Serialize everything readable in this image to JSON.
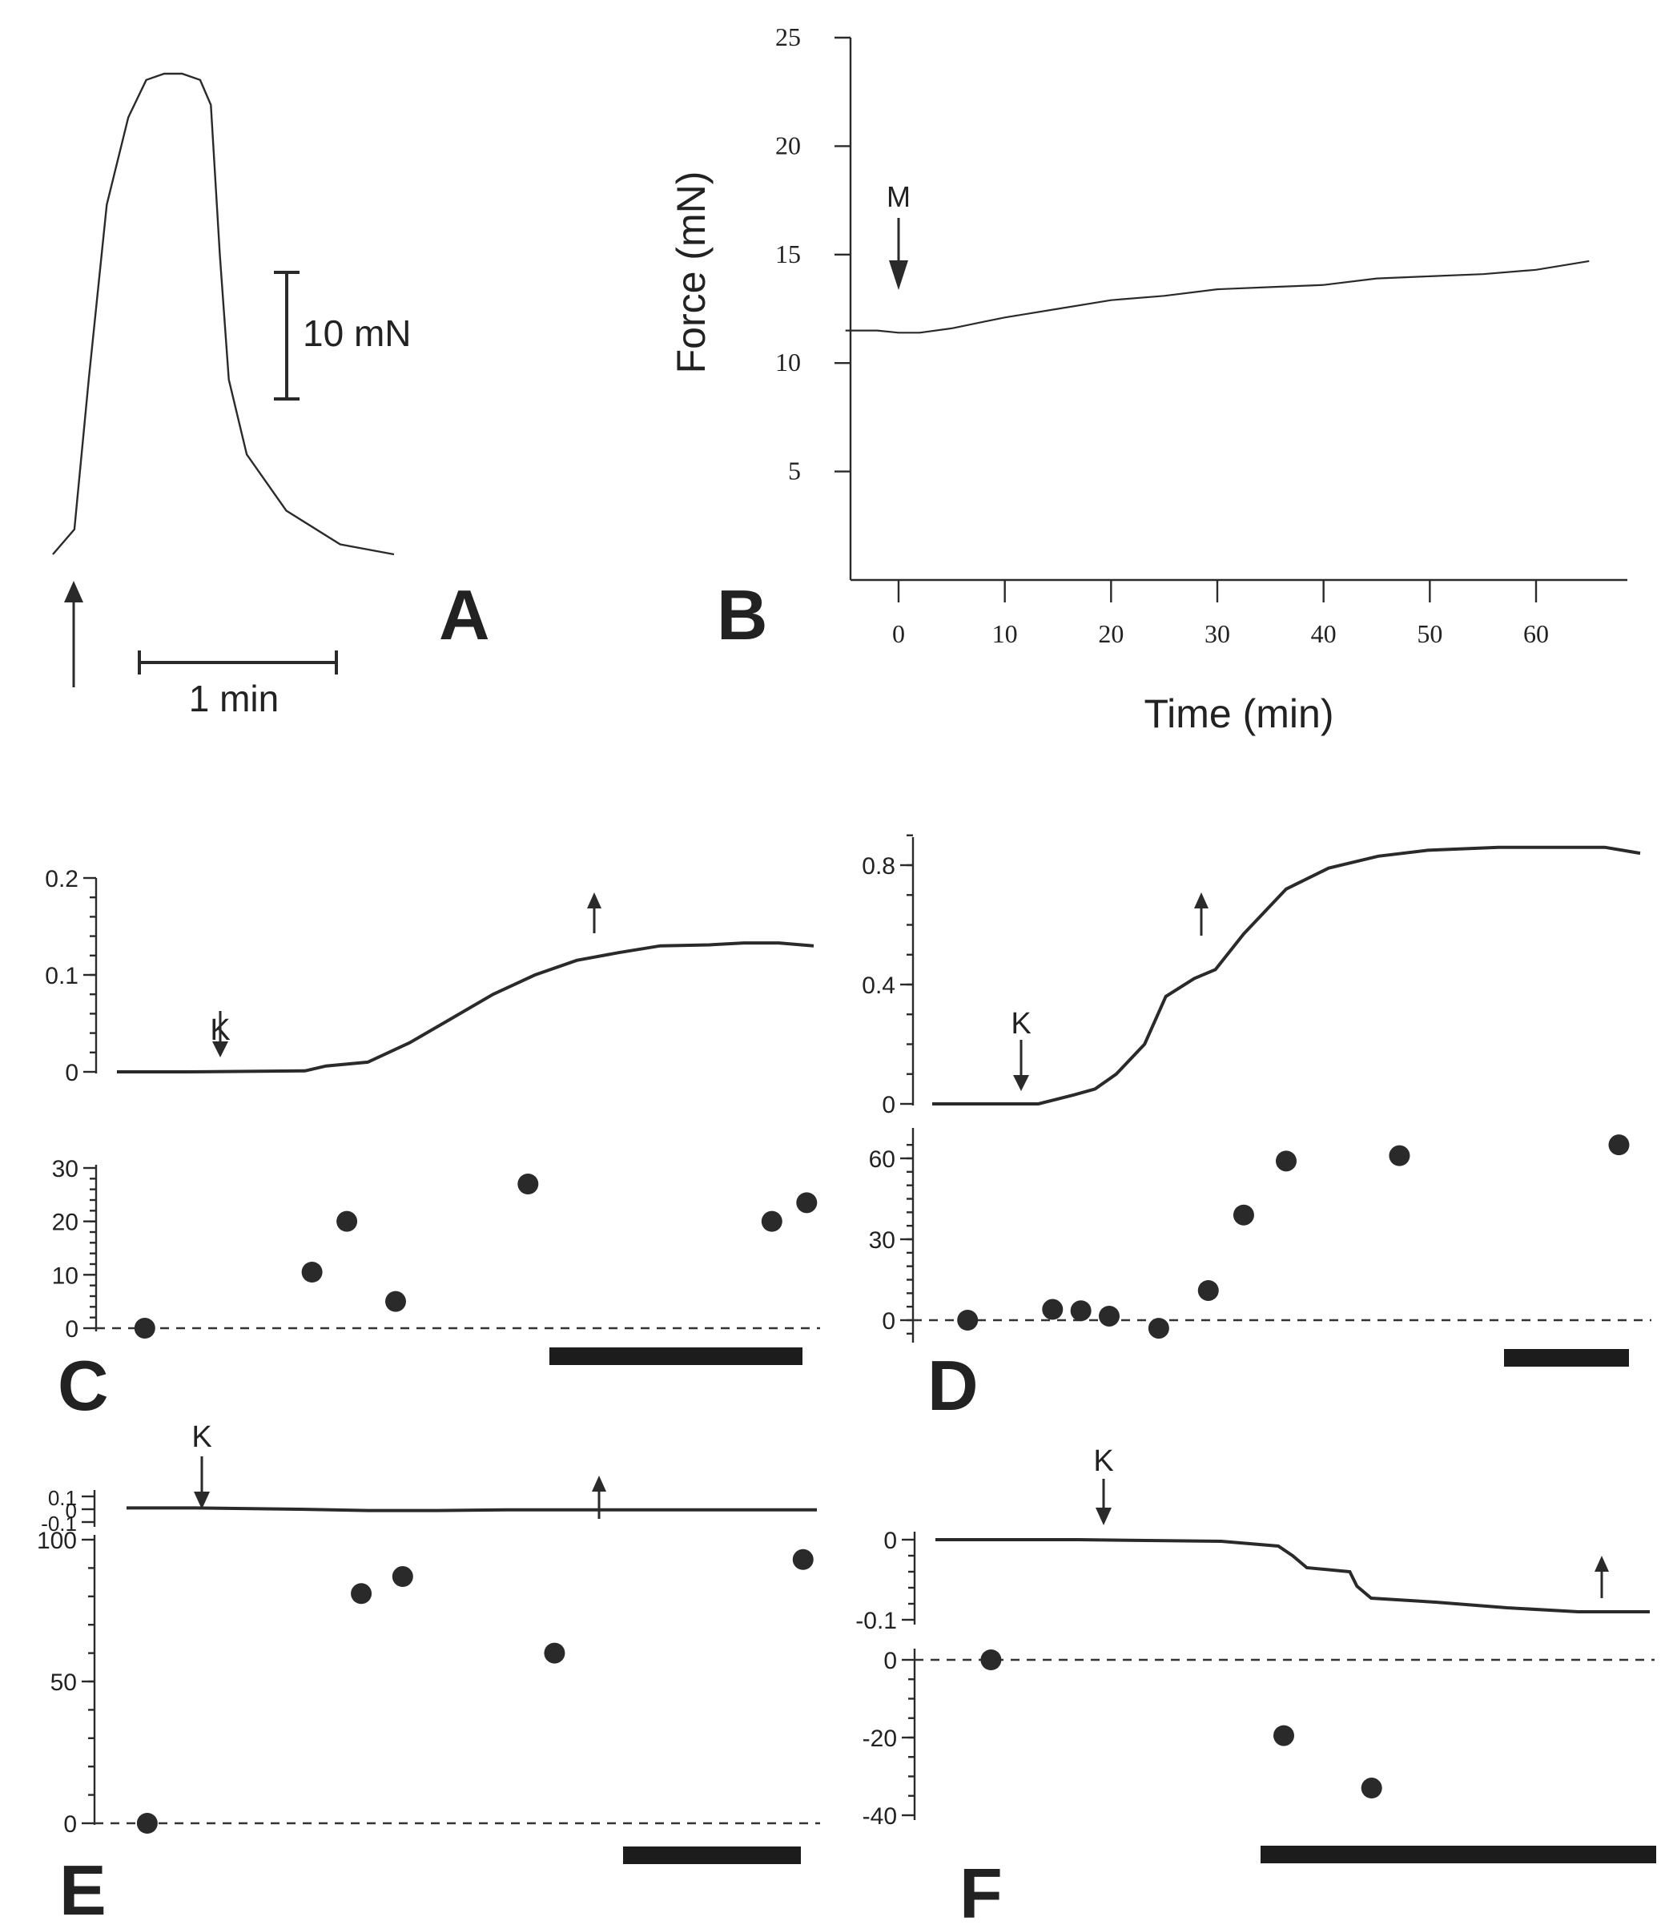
{
  "chart_data": [
    {
      "panel": "A",
      "type": "line",
      "series": [
        {
          "name": "force trace",
          "t_min": [
            0,
            0.12,
            0.2,
            0.3,
            0.42,
            0.52,
            0.62,
            0.72,
            0.82,
            0.88,
            0.93,
            0.98,
            1.08,
            1.3,
            1.6,
            1.9
          ],
          "force_mN": [
            0,
            2,
            14,
            28,
            35,
            38,
            38.5,
            38.5,
            38,
            36,
            24,
            14,
            8,
            3.5,
            0.8,
            0
          ]
        }
      ],
      "scale_bars": {
        "force": "10 mN",
        "time": "1 min"
      }
    },
    {
      "panel": "B",
      "type": "line",
      "xlabel": "Time (min)",
      "ylabel": "Force (mN)",
      "xlim": [
        -5,
        67
      ],
      "ylim": [
        0,
        25
      ],
      "xticks": [
        "0",
        "10",
        "20",
        "30",
        "40",
        "50",
        "60"
      ],
      "yticks": [
        "5",
        "10",
        "15",
        "20",
        "25"
      ],
      "annotations": [
        "M"
      ],
      "series": [
        {
          "name": "force",
          "x": [
            -5,
            -2,
            0,
            2,
            5,
            8,
            10,
            15,
            20,
            25,
            30,
            35,
            40,
            45,
            50,
            55,
            60,
            65
          ],
          "y": [
            11.5,
            11.5,
            11.4,
            11.4,
            11.6,
            11.9,
            12.1,
            12.5,
            12.9,
            13.1,
            13.4,
            13.5,
            13.6,
            13.9,
            14.0,
            14.1,
            14.3,
            14.7
          ]
        }
      ]
    },
    {
      "panel": "C",
      "type": "line+scatter",
      "top": {
        "yticks": [
          "0",
          "0.1",
          "0.2"
        ],
        "ylim": [
          0,
          0.2
        ],
        "annotations": [
          "K"
        ],
        "x": [
          0,
          0.1,
          0.27,
          0.3,
          0.36,
          0.42,
          0.48,
          0.54,
          0.6,
          0.66,
          0.72,
          0.78,
          0.85,
          0.9,
          0.95,
          1.0
        ],
        "y": [
          0,
          0,
          0.001,
          0.006,
          0.01,
          0.03,
          0.055,
          0.08,
          0.1,
          0.115,
          0.123,
          0.13,
          0.131,
          0.133,
          0.133,
          0.13
        ]
      },
      "bottom": {
        "yticks": [
          "0",
          "10",
          "20",
          "30"
        ],
        "ylim": [
          -2,
          30
        ],
        "points_x": [
          0.04,
          0.28,
          0.33,
          0.4,
          0.59,
          0.94,
          0.99
        ],
        "points_y": [
          0,
          10.5,
          20,
          5,
          27,
          20,
          23.5
        ]
      }
    },
    {
      "panel": "D",
      "type": "line+scatter",
      "top": {
        "yticks": [
          "0",
          "0.4",
          "0.8"
        ],
        "ylim": [
          0,
          0.9
        ],
        "annotations": [
          "K"
        ],
        "x": [
          0,
          0.15,
          0.2,
          0.23,
          0.26,
          0.3,
          0.33,
          0.37,
          0.4,
          0.44,
          0.5,
          0.56,
          0.63,
          0.7,
          0.8,
          0.9,
          0.95,
          1.0
        ],
        "y": [
          0,
          0,
          0.03,
          0.05,
          0.1,
          0.2,
          0.36,
          0.42,
          0.45,
          0.57,
          0.72,
          0.79,
          0.83,
          0.85,
          0.86,
          0.86,
          0.86,
          0.84
        ]
      },
      "bottom": {
        "yticks": [
          "0",
          "30",
          "60"
        ],
        "ylim": [
          -10,
          65
        ],
        "points_x": [
          0.05,
          0.17,
          0.21,
          0.25,
          0.32,
          0.39,
          0.44,
          0.5,
          0.66,
          0.97
        ],
        "points_y": [
          0,
          4,
          3.5,
          1.5,
          -3,
          11,
          39,
          59,
          61,
          65
        ]
      }
    },
    {
      "panel": "E",
      "type": "line+scatter",
      "top": {
        "yticks": [
          "0.1",
          "0",
          "-0.1"
        ],
        "ylim": [
          -0.15,
          0.15
        ],
        "annotations": [
          "K"
        ],
        "x": [
          0,
          0.1,
          0.25,
          0.35,
          0.45,
          0.55,
          0.7,
          0.85,
          1.0
        ],
        "y": [
          0.01,
          0.01,
          0.0,
          -0.01,
          -0.01,
          -0.005,
          -0.005,
          -0.005,
          -0.005
        ]
      },
      "bottom": {
        "yticks": [
          "0",
          "50",
          "100"
        ],
        "ylim": [
          -2,
          100
        ],
        "points_x": [
          0.03,
          0.34,
          0.4,
          0.62,
          0.98
        ],
        "points_y": [
          0,
          81,
          87,
          60,
          93
        ]
      }
    },
    {
      "panel": "F",
      "type": "line+scatter",
      "top": {
        "yticks": [
          "0",
          "-0.1"
        ],
        "ylim": [
          -0.12,
          0.01
        ],
        "annotations": [
          "K"
        ],
        "x": [
          0,
          0.2,
          0.4,
          0.48,
          0.5,
          0.52,
          0.58,
          0.59,
          0.61,
          0.7,
          0.8,
          0.9,
          1.0
        ],
        "y": [
          0,
          0,
          -0.002,
          -0.008,
          -0.02,
          -0.035,
          -0.04,
          -0.058,
          -0.073,
          -0.078,
          -0.085,
          -0.09,
          -0.09
        ]
      },
      "bottom": {
        "yticks": [
          "0",
          "-20",
          "-40"
        ],
        "ylim": [
          -42,
          2
        ],
        "points_x": [
          0.1,
          0.5,
          0.62
        ],
        "points_y": [
          0,
          -19.5,
          -33
        ]
      }
    }
  ],
  "labels": {
    "A": "A",
    "B": "B",
    "C": "C",
    "D": "D",
    "E": "E",
    "F": "F",
    "scale_force": "10 mN",
    "scale_time": "1 min",
    "B_xlabel": "Time (min)",
    "B_ylabel": "Force (mN)",
    "B_marker": "M",
    "K": "K",
    "B_xticks": [
      "0",
      "10",
      "20",
      "30",
      "40",
      "50",
      "60"
    ],
    "B_yticks": [
      "5",
      "10",
      "15",
      "20",
      "25"
    ],
    "C_top_ticks": [
      "0",
      "0.1",
      "0.2"
    ],
    "C_bottom_ticks": [
      "0",
      "10",
      "20",
      "30"
    ],
    "D_top_ticks": [
      "0",
      "0.4",
      "0.8"
    ],
    "D_bottom_ticks": [
      "0",
      "30",
      "60"
    ],
    "E_top_ticks": [
      "0.1",
      "0",
      "-0.1"
    ],
    "E_bottom_ticks": [
      "0",
      "50",
      "100"
    ],
    "F_top_ticks": [
      "0",
      "-0.1"
    ],
    "F_bottom_ticks": [
      "0",
      "-20",
      "-40"
    ]
  }
}
